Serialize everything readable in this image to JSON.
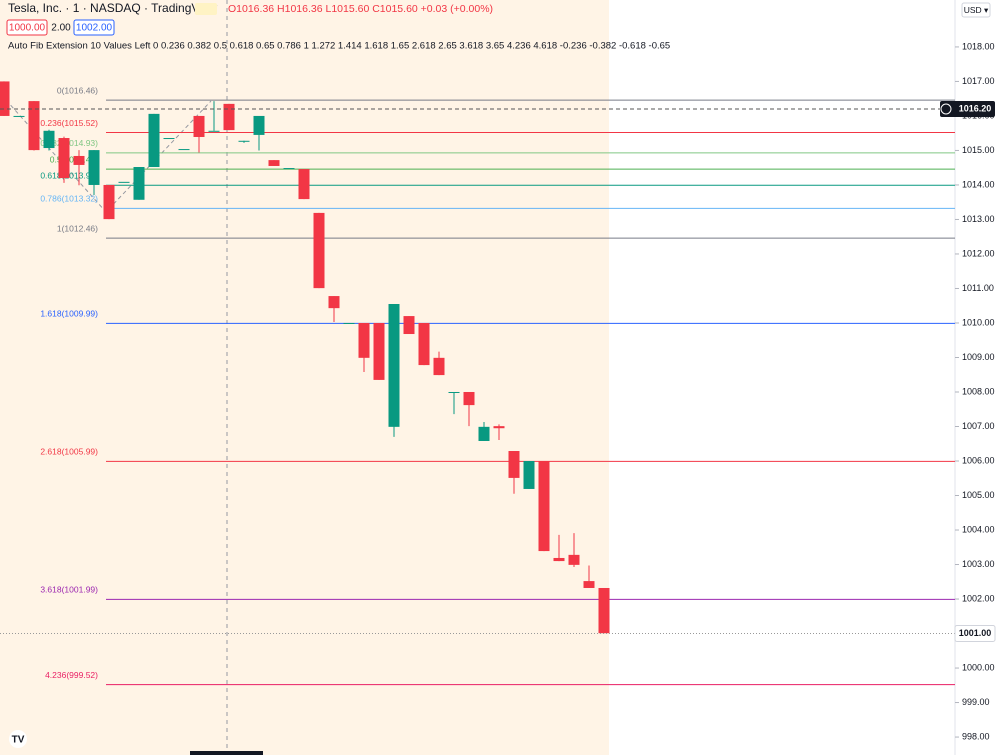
{
  "header": {
    "symbol": "Tesla, Inc. · 1 · NASDAQ · TradingView",
    "ohlc": "O1016.36 H1016.36 L1015.60 C1015.60 +0.03 (+0.00%)",
    "inputs": [
      "1000.00",
      "2.00",
      "1002.00"
    ],
    "currency": "USD ▾",
    "indicator": "Auto Fib Extension 10 Values Left 0 0.236 0.382 0.5 0.618 0.65 0.786 1 1.272 1.414 1.618 1.65 2.618 2.65 3.618 3.65 4.236 4.618 -0.236 -0.382 -0.618 -0.65"
  },
  "chart_data": {
    "type": "candlestick",
    "ylim": [
      997.48,
      1019.36
    ],
    "yticks": [
      {
        "value": 998,
        "label": "998.00"
      },
      {
        "value": 999,
        "label": "999.00"
      },
      {
        "value": 1000,
        "label": "1000.00"
      },
      {
        "value": 1001,
        "label": "1001.00"
      },
      {
        "value": 1002,
        "label": "1002.00"
      },
      {
        "value": 1003,
        "label": "1003.00"
      },
      {
        "value": 1004,
        "label": "1004.00"
      },
      {
        "value": 1005,
        "label": "1005.00"
      },
      {
        "value": 1006,
        "label": "1006.00"
      },
      {
        "value": 1007,
        "label": "1007.00"
      },
      {
        "value": 1008,
        "label": "1008.00"
      },
      {
        "value": 1009,
        "label": "1009.00"
      },
      {
        "value": 1010,
        "label": "1010.00"
      },
      {
        "value": 1011,
        "label": "1011.00"
      },
      {
        "value": 1012,
        "label": "1012.00"
      },
      {
        "value": 1013,
        "label": "1013.00"
      },
      {
        "value": 1014,
        "label": "1014.00"
      },
      {
        "value": 1015,
        "label": "1015.00"
      },
      {
        "value": 1016,
        "label": "1016.00"
      },
      {
        "value": 1017,
        "label": "1017.00"
      },
      {
        "value": 1018,
        "label": "1018.00"
      }
    ],
    "up_color": "#089981",
    "down_color": "#f23645",
    "open": [
      1017.0,
      1016.0,
      1016.43,
      1015.07,
      1015.36,
      1014.84,
      1014.0,
      1014.0,
      1014.09,
      1013.57,
      1014.52,
      1015.36,
      1015.04,
      1016.0,
      1015.57,
      1016.35,
      1015.28,
      1015.45,
      1014.72,
      1014.49,
      1014.46,
      1013.19,
      1010.78,
      1010.0,
      1010.0,
      1010.0,
      1006.99,
      1010.2,
      1010.0,
      1008.99,
      1008.0,
      1008.0,
      1006.58,
      1007.01,
      1006.29,
      1005.19,
      1006.0,
      1003.19,
      1003.28,
      1002.52,
      1002.32
    ],
    "high": [
      1017.0,
      1016.0,
      1016.43,
      1015.6,
      1015.4,
      1015.01,
      1015.01,
      1014.0,
      1014.09,
      1014.52,
      1016.06,
      1015.36,
      1015.04,
      1016.0,
      1016.43,
      1016.35,
      1015.28,
      1016.0,
      1014.72,
      1014.49,
      1014.46,
      1013.19,
      1010.78,
      1010.0,
      1010.0,
      1010.0,
      1010.55,
      1010.2,
      1010.0,
      1009.17,
      1008.0,
      1008.0,
      1007.13,
      1007.06,
      1006.29,
      1006.0,
      1006.0,
      1003.86,
      1003.91,
      1002.97,
      1002.32
    ],
    "low": [
      1016.0,
      1016.0,
      1015.0,
      1015.0,
      1014.06,
      1013.99,
      1013.71,
      1013.01,
      1014.09,
      1013.57,
      1014.52,
      1015.36,
      1015.04,
      1014.94,
      1015.57,
      1015.59,
      1015.22,
      1015.0,
      1014.55,
      1014.49,
      1013.59,
      1011.01,
      1010.03,
      1010.0,
      1008.58,
      1008.35,
      1006.7,
      1009.68,
      1008.78,
      1008.49,
      1007.36,
      1007.01,
      1006.58,
      1006.61,
      1005.05,
      1005.19,
      1003.39,
      1003.1,
      1002.93,
      1002.32,
      1001.01
    ],
    "close": [
      1016.0,
      1016.0,
      1015.01,
      1015.57,
      1014.2,
      1014.58,
      1015.01,
      1013.01,
      1014.09,
      1014.52,
      1016.06,
      1015.36,
      1015.04,
      1015.39,
      1015.57,
      1015.59,
      1015.28,
      1016.0,
      1014.55,
      1014.49,
      1013.59,
      1011.01,
      1010.43,
      1010.0,
      1008.99,
      1008.35,
      1010.55,
      1009.68,
      1008.78,
      1008.49,
      1008.0,
      1007.62,
      1006.99,
      1006.95,
      1005.51,
      1006.0,
      1003.39,
      1003.1,
      1002.99,
      1002.32,
      1001.01
    ],
    "fib_levels": [
      {
        "label": "0(1016.46)",
        "value": 1016.46,
        "color": "#787b86"
      },
      {
        "label": "0.236(1015.52)",
        "value": 1015.52,
        "color": "#f23645"
      },
      {
        "label": "0.382(1014.93)",
        "value": 1014.93,
        "color": "#81c784"
      },
      {
        "label": "0.5(1014.46)",
        "value": 1014.46,
        "color": "#4caf50"
      },
      {
        "label": "0.618(1013.99)",
        "value": 1013.99,
        "color": "#089981"
      },
      {
        "label": "0.786(1013.32)",
        "value": 1013.32,
        "color": "#64b5f6"
      },
      {
        "label": "1(1012.46)",
        "value": 1012.46,
        "color": "#787b86"
      },
      {
        "label": "1.618(1009.99)",
        "value": 1009.99,
        "color": "#2962ff"
      },
      {
        "label": "2.618(1005.99)",
        "value": 1005.99,
        "color": "#f23645"
      },
      {
        "label": "3.618(1001.99)",
        "value": 1001.99,
        "color": "#9c27b0"
      },
      {
        "label": "4.236(999.52)",
        "value": 999.52,
        "color": "#e91e63"
      }
    ],
    "price_labels": [
      {
        "value": 1016.2,
        "label": "1016.20",
        "color": "#131722"
      },
      {
        "value": 1001.0,
        "label": "1001.00",
        "color": "#ffffff"
      }
    ]
  }
}
